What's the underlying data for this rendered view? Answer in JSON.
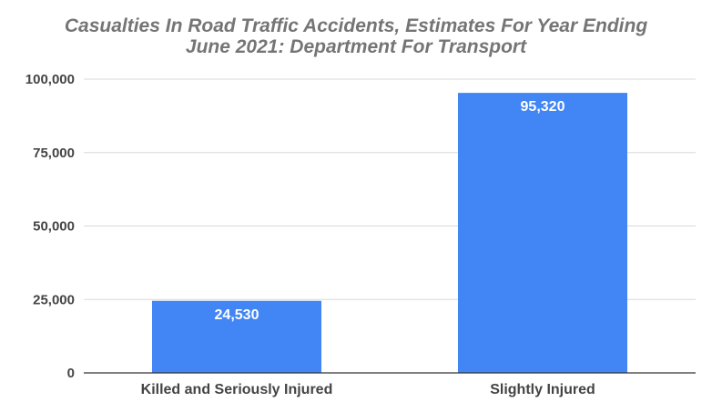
{
  "chart_data": {
    "type": "bar",
    "title": "Casualties In Road Traffic Accidents, Estimates For Year Ending June 2021: Department For Transport",
    "title_lines": [
      "Casualties In Road Traffic Accidents, Estimates For Year Ending",
      "June 2021: Department For Transport"
    ],
    "categories": [
      "Killed and Seriously Injured",
      "Slightly Injured"
    ],
    "values": [
      24530,
      95320
    ],
    "data_labels": [
      "24,530",
      "95,320"
    ],
    "ylim": [
      0,
      100000
    ],
    "y_ticks": [
      0,
      25000,
      50000,
      75000,
      100000
    ],
    "y_tick_labels": [
      "0",
      "25,000",
      "50,000",
      "75,000",
      "100,000"
    ],
    "xlabel": "",
    "ylabel": "",
    "grid": true,
    "legend": "none",
    "bar_color": "#4285f4",
    "title_color": "#757575",
    "tick_color": "#444444",
    "grid_color": "#d9d9d9"
  }
}
